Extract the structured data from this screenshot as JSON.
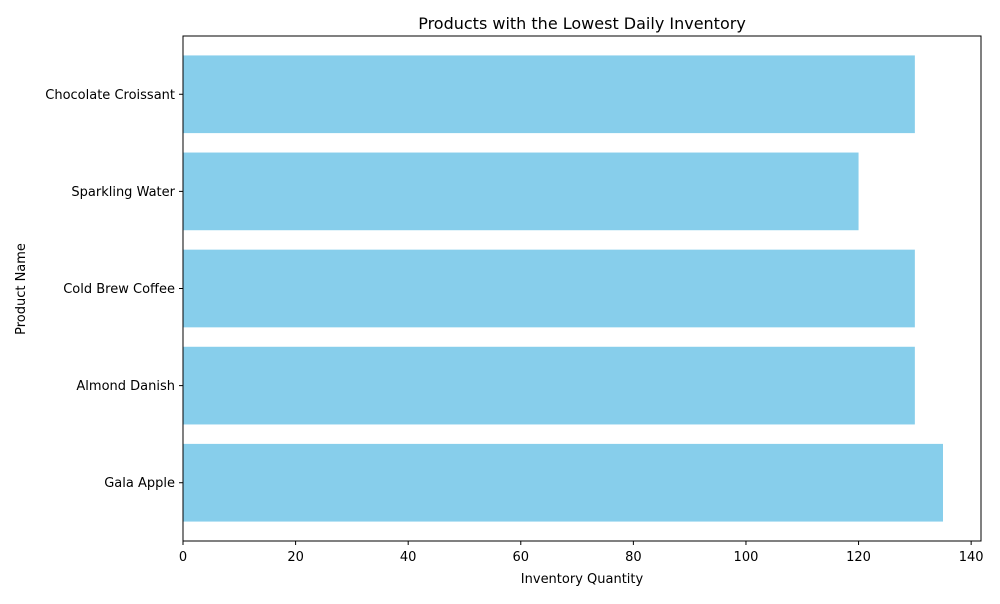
{
  "chart_data": {
    "type": "bar",
    "orientation": "horizontal",
    "title": "Products with the Lowest Daily Inventory",
    "xlabel": "Inventory Quantity",
    "ylabel": "Product Name",
    "categories": [
      "Chocolate Croissant",
      "Sparkling Water",
      "Cold Brew Coffee",
      "Almond Danish",
      "Gala Apple"
    ],
    "values": [
      130,
      120,
      130,
      130,
      135
    ],
    "xlim": [
      0,
      141.75
    ],
    "xticks": [
      0,
      20,
      40,
      60,
      80,
      100,
      120,
      140
    ],
    "bar_color": "#87ceeb",
    "grid": false,
    "legend": "none"
  }
}
